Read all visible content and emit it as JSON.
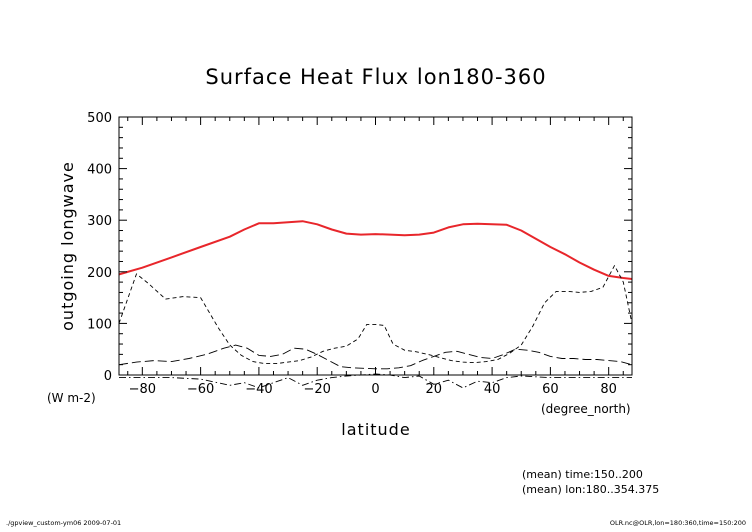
{
  "chart_data": {
    "type": "line",
    "title": "Surface Heat Flux lon180-360",
    "xlabel": "latitude",
    "ylabel": "outgoing longwave",
    "y_units": "(W m-2)",
    "x_units": "(degree_north)",
    "xlim": [
      -88,
      88
    ],
    "ylim": [
      0,
      500
    ],
    "x_ticks": [
      -80,
      -60,
      -40,
      -20,
      0,
      20,
      40,
      60,
      80
    ],
    "y_ticks": [
      0,
      100,
      200,
      300,
      400,
      500
    ],
    "grid": false,
    "series": [
      {
        "style": "solid",
        "color": "#e8262b",
        "x": [
          -88,
          -80,
          -70,
          -60,
          -50,
          -45,
          -40,
          -35,
          -30,
          -25,
          -20,
          -15,
          -10,
          -5,
          0,
          5,
          10,
          15,
          20,
          25,
          30,
          35,
          40,
          45,
          50,
          55,
          60,
          65,
          70,
          75,
          80,
          85,
          88
        ],
        "y": [
          195,
          208,
          228,
          248,
          268,
          282,
          294,
          294,
          296,
          298,
          292,
          282,
          274,
          272,
          273,
          272,
          271,
          272,
          276,
          286,
          292,
          293,
          292,
          291,
          280,
          264,
          248,
          234,
          218,
          204,
          192,
          188,
          186
        ]
      },
      {
        "style": "dashed",
        "color": "#000000",
        "x": [
          -88,
          -82,
          -78,
          -72,
          -66,
          -60,
          -54,
          -50,
          -46,
          -42,
          -38,
          -34,
          -30,
          -26,
          -22,
          -18,
          -14,
          -10,
          -6,
          -3,
          0,
          3,
          6,
          10,
          14,
          18,
          22,
          26,
          30,
          34,
          38,
          42,
          46,
          50,
          54,
          58,
          62,
          66,
          70,
          74,
          78,
          82,
          85,
          88
        ],
        "y": [
          100,
          196,
          178,
          147,
          152,
          150,
          92,
          58,
          38,
          26,
          22,
          22,
          25,
          28,
          35,
          46,
          52,
          56,
          70,
          98,
          98,
          96,
          60,
          48,
          45,
          40,
          34,
          28,
          25,
          24,
          26,
          30,
          42,
          58,
          95,
          140,
          162,
          162,
          160,
          162,
          170,
          212,
          180,
          100
        ]
      },
      {
        "style": "long-dash",
        "color": "#000000",
        "x": [
          -88,
          -82,
          -76,
          -70,
          -64,
          -58,
          -52,
          -48,
          -44,
          -40,
          -36,
          -32,
          -28,
          -24,
          -20,
          -16,
          -12,
          -8,
          -4,
          0,
          4,
          8,
          12,
          16,
          20,
          24,
          28,
          32,
          36,
          40,
          44,
          48,
          52,
          56,
          60,
          64,
          68,
          72,
          76,
          80,
          84,
          88
        ],
        "y": [
          20,
          25,
          28,
          26,
          32,
          40,
          52,
          58,
          52,
          38,
          36,
          40,
          52,
          50,
          40,
          28,
          16,
          14,
          13,
          12,
          12,
          14,
          18,
          28,
          36,
          44,
          46,
          40,
          34,
          32,
          40,
          50,
          48,
          44,
          36,
          32,
          32,
          30,
          30,
          28,
          26,
          20
        ]
      },
      {
        "style": "dash-dot",
        "color": "#000000",
        "x": [
          -88,
          -80,
          -70,
          -60,
          -50,
          -45,
          -40,
          -35,
          -30,
          -25,
          -20,
          -15,
          -10,
          -5,
          0,
          5,
          10,
          15,
          20,
          25,
          30,
          35,
          40,
          45,
          50,
          60,
          70,
          80,
          88
        ],
        "y": [
          -5,
          -5,
          -5,
          -8,
          -20,
          -15,
          -25,
          -15,
          -5,
          -20,
          -10,
          -5,
          -2,
          0,
          2,
          0,
          -5,
          -2,
          -18,
          -10,
          -25,
          -12,
          -15,
          -5,
          -2,
          -5,
          -5,
          -5,
          -5
        ]
      }
    ]
  },
  "footer": {
    "mean_time": "(mean) time:150..200",
    "mean_lon": "(mean) lon:180..354.375",
    "left_note": "./gpview_custom-ym06   2009-07-01",
    "right_note": "OLR.nc@OLR,lon=180:360,time=150:200"
  }
}
